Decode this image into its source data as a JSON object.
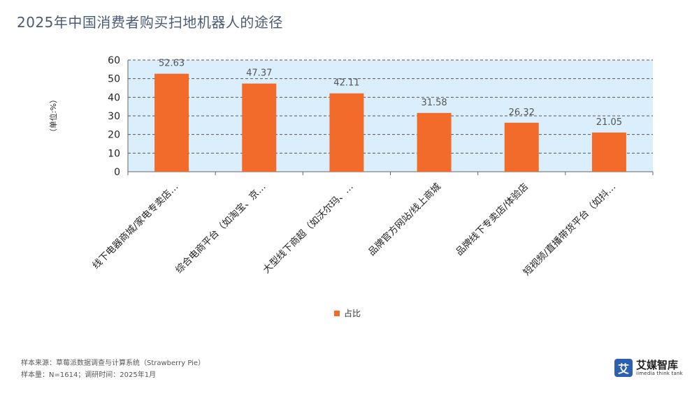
{
  "page": {
    "title": "2025年中国消费者购买扫地机器人的途径",
    "source_line": "样本来源：草莓派数据调查与计算系统（Strawberry Pie）",
    "sample_line": "样本量：N=1614；调研时间：2025年1月",
    "logo_cn": "艾媒智库",
    "logo_en": "iimedia think tank",
    "logo_mark": "艾"
  },
  "colors": {
    "bar": "#f26b2a",
    "plot_bg": "#dbeefb",
    "grid": "#555555",
    "title": "#4a5b73"
  },
  "chart_data": {
    "type": "bar",
    "categories": [
      "线下电器商城/家电专卖店…",
      "综合电商平台（如淘宝、京…",
      "大型线下商超（如沃尔玛、…",
      "品牌官方网站/线上商城",
      "品牌线下专卖店/体验店",
      "短视频/直播带货平台（如抖…"
    ],
    "series": [
      {
        "name": "占比",
        "values": [
          52.63,
          47.37,
          42.11,
          31.58,
          26.32,
          21.05
        ]
      }
    ],
    "data_labels": [
      "52.63",
      "47.37",
      "42.11",
      "31.58",
      "26.32",
      "21.05"
    ],
    "ylabel": "（单位:%）",
    "ylim": [
      0,
      60
    ],
    "yticks": [
      0,
      10,
      20,
      30,
      40,
      50,
      60
    ],
    "grid": true,
    "legend_position": "bottom"
  }
}
